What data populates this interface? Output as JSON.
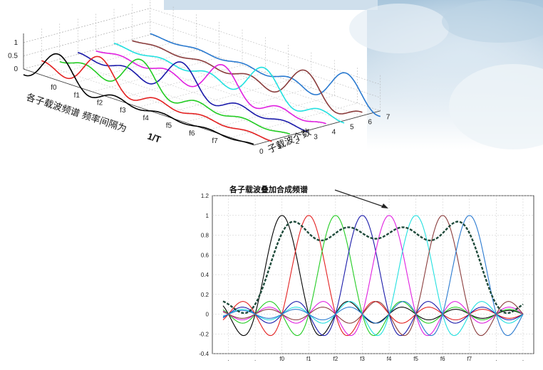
{
  "chart_data": [
    {
      "type": "line",
      "subtype": "3d-waterfall",
      "title": "",
      "zlim": [
        0,
        1
      ],
      "z_ticks": [
        "1",
        "0.5",
        "0"
      ],
      "xlabel": "子载波个数",
      "x_ticks": [
        "0",
        "1",
        "2",
        "3",
        "4",
        "5",
        "6",
        "7"
      ],
      "ylabel": "各子载波频谱   频率间隔为",
      "ylabel_bold": "1/T",
      "y_ticks": [
        "f0",
        "f1",
        "f2",
        "f3",
        "f4",
        "f5",
        "f6",
        "f7"
      ],
      "function": "sinc",
      "series": [
        {
          "index": 0,
          "peak_at": "f0",
          "color": "#000000"
        },
        {
          "index": 1,
          "peak_at": "f1",
          "color": "#e32020"
        },
        {
          "index": 2,
          "peak_at": "f2",
          "color": "#22cc22"
        },
        {
          "index": 3,
          "peak_at": "f3",
          "color": "#1a1aaa"
        },
        {
          "index": 4,
          "peak_at": "f4",
          "color": "#e020e0"
        },
        {
          "index": 5,
          "peak_at": "f5",
          "color": "#22e0e0"
        },
        {
          "index": 6,
          "peak_at": "f6",
          "color": "#8a3c3c"
        },
        {
          "index": 7,
          "peak_at": "f7",
          "color": "#2a7ad0"
        }
      ],
      "grid": true
    },
    {
      "type": "line",
      "title": "",
      "annotation": "各子载波叠加合成频谱",
      "ylim": [
        -0.4,
        1.2
      ],
      "y_ticks": [
        "1.2",
        "1",
        "0.8",
        "0.6",
        "0.4",
        "0.2",
        "0",
        "-0.2",
        "-0.4"
      ],
      "x_ticks": [
        ".",
        ".",
        "f0",
        "f1",
        "f2",
        "f3",
        "f4",
        "f5",
        "f6",
        "f7",
        ".",
        "."
      ],
      "function": "sinc",
      "subcarrier_peaks": [
        0,
        1,
        2,
        3,
        4,
        5,
        6,
        7
      ],
      "colors": [
        "#000000",
        "#e32020",
        "#22cc22",
        "#1a1aaa",
        "#e020e0",
        "#22e0e0",
        "#8a3c3c",
        "#2a7ad0"
      ],
      "sum_series": {
        "style": "dashed",
        "color": "#1e4a3a"
      },
      "xlim_subcarrier_units": [
        -2.6,
        9.4
      ],
      "grid": true
    }
  ]
}
